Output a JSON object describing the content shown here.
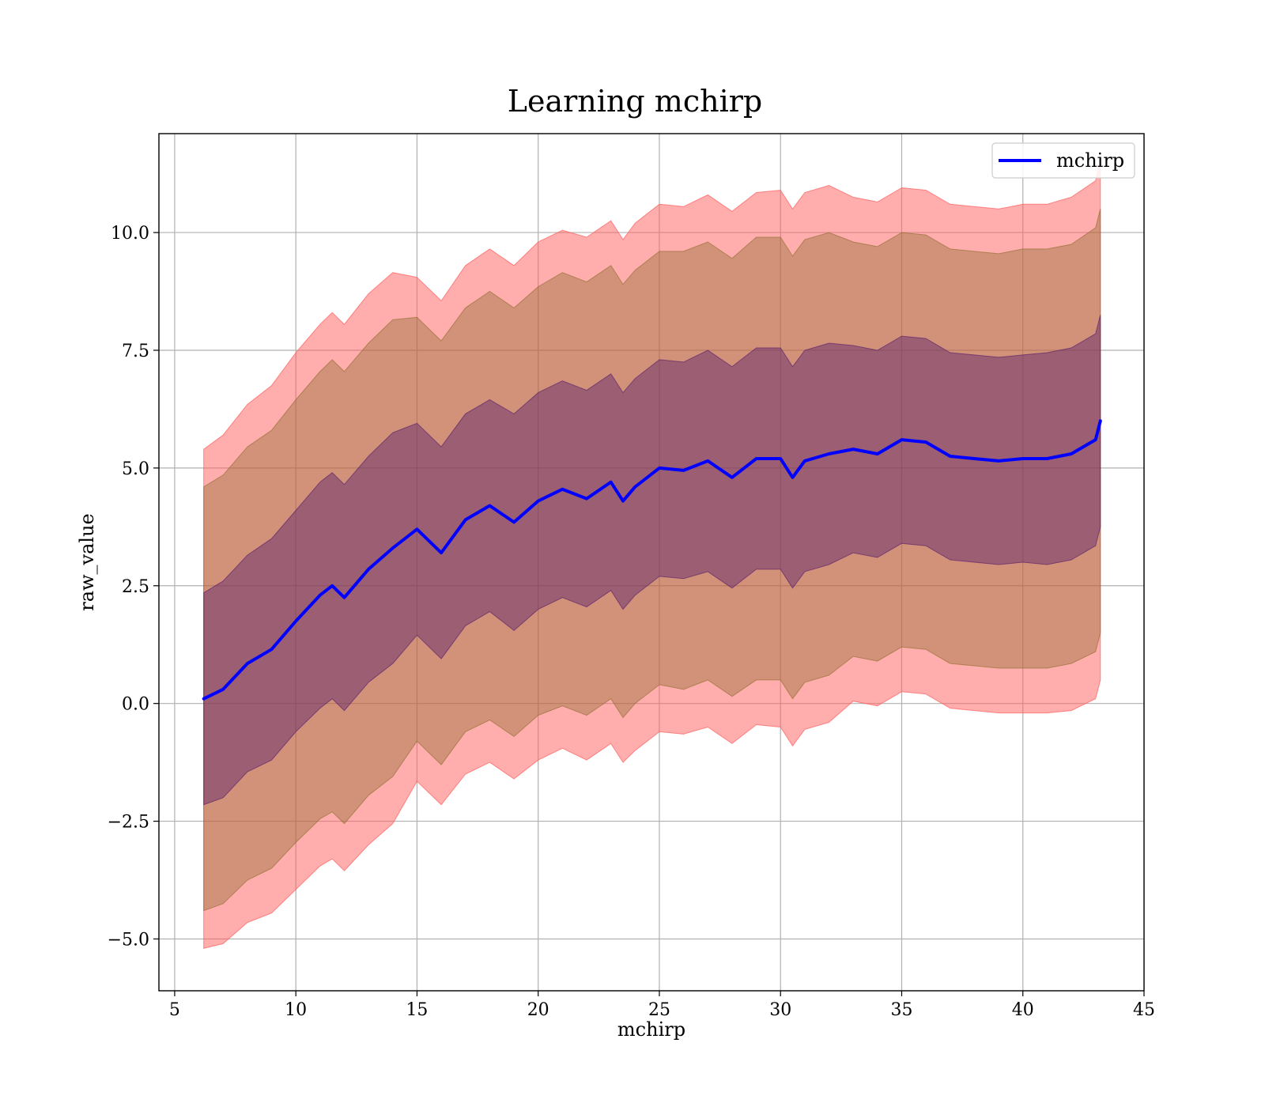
{
  "chart_data": {
    "type": "area",
    "title": "Learning mchirp",
    "xlabel": "mchirp",
    "ylabel": "raw_value",
    "xlim": [
      4.35,
      45
    ],
    "ylim": [
      -6.1,
      12.1
    ],
    "xticks": [
      5,
      10,
      15,
      20,
      25,
      30,
      35,
      40,
      45
    ],
    "xtick_labels": [
      "5",
      "10",
      "15",
      "20",
      "25",
      "30",
      "35",
      "40",
      "45"
    ],
    "yticks": [
      -5.0,
      -2.5,
      0.0,
      2.5,
      5.0,
      7.5,
      10.0
    ],
    "ytick_labels": [
      "−5.0",
      "−2.5",
      "0.0",
      "2.5",
      "5.0",
      "7.5",
      "10.0"
    ],
    "grid": true,
    "legend": {
      "position": "top-right",
      "entries": [
        "mchirp"
      ]
    },
    "x": [
      6.2,
      7,
      8,
      9,
      10,
      11,
      11.5,
      12,
      13,
      14,
      15,
      16,
      17,
      18,
      19,
      20,
      21,
      22,
      23,
      23.5,
      24,
      25,
      26,
      27,
      28,
      29,
      30,
      30.5,
      31,
      32,
      33,
      34,
      35,
      36,
      37,
      38,
      39,
      40,
      41,
      42,
      43,
      43.2
    ],
    "series": [
      {
        "name": "mchirp",
        "color": "#0000ff",
        "values": [
          0.1,
          0.3,
          0.85,
          1.15,
          1.75,
          2.3,
          2.5,
          2.25,
          2.85,
          3.3,
          3.7,
          3.2,
          3.9,
          4.2,
          3.85,
          4.3,
          4.55,
          4.35,
          4.7,
          4.3,
          4.6,
          5.0,
          4.95,
          5.15,
          4.8,
          5.2,
          5.2,
          4.8,
          5.15,
          5.3,
          5.4,
          5.3,
          5.6,
          5.55,
          5.25,
          5.2,
          5.15,
          5.2,
          5.2,
          5.3,
          5.6,
          6.0
        ]
      }
    ],
    "bands": [
      {
        "color": "#ff5c5c",
        "opacity": 0.5,
        "sigma": 3,
        "half_width": [
          5.3,
          5.4,
          5.5,
          5.6,
          5.7,
          5.75,
          5.8,
          5.8,
          5.85,
          5.85,
          5.35,
          5.35,
          5.4,
          5.45,
          5.45,
          5.5,
          5.5,
          5.55,
          5.55,
          5.55,
          5.6,
          5.6,
          5.6,
          5.65,
          5.65,
          5.65,
          5.7,
          5.7,
          5.7,
          5.7,
          5.35,
          5.35,
          5.35,
          5.35,
          5.35,
          5.35,
          5.35,
          5.4,
          5.4,
          5.45,
          5.5,
          5.5
        ]
      },
      {
        "color": "#8c6a2a",
        "opacity": 0.4,
        "sigma": 2,
        "half_width": [
          4.5,
          4.55,
          4.6,
          4.65,
          4.7,
          4.75,
          4.8,
          4.8,
          4.8,
          4.85,
          4.5,
          4.5,
          4.5,
          4.55,
          4.55,
          4.55,
          4.6,
          4.6,
          4.6,
          4.6,
          4.6,
          4.6,
          4.65,
          4.65,
          4.65,
          4.7,
          4.7,
          4.7,
          4.7,
          4.7,
          4.4,
          4.4,
          4.4,
          4.4,
          4.4,
          4.4,
          4.4,
          4.45,
          4.45,
          4.45,
          4.5,
          4.5
        ]
      },
      {
        "color": "#5a1f6b",
        "opacity": 0.45,
        "sigma": 1,
        "half_width": [
          2.25,
          2.3,
          2.3,
          2.35,
          2.35,
          2.4,
          2.4,
          2.4,
          2.4,
          2.45,
          2.25,
          2.25,
          2.25,
          2.25,
          2.3,
          2.3,
          2.3,
          2.3,
          2.3,
          2.3,
          2.3,
          2.3,
          2.3,
          2.35,
          2.35,
          2.35,
          2.35,
          2.35,
          2.35,
          2.35,
          2.2,
          2.2,
          2.2,
          2.2,
          2.2,
          2.2,
          2.2,
          2.2,
          2.25,
          2.25,
          2.25,
          2.25
        ]
      }
    ]
  }
}
